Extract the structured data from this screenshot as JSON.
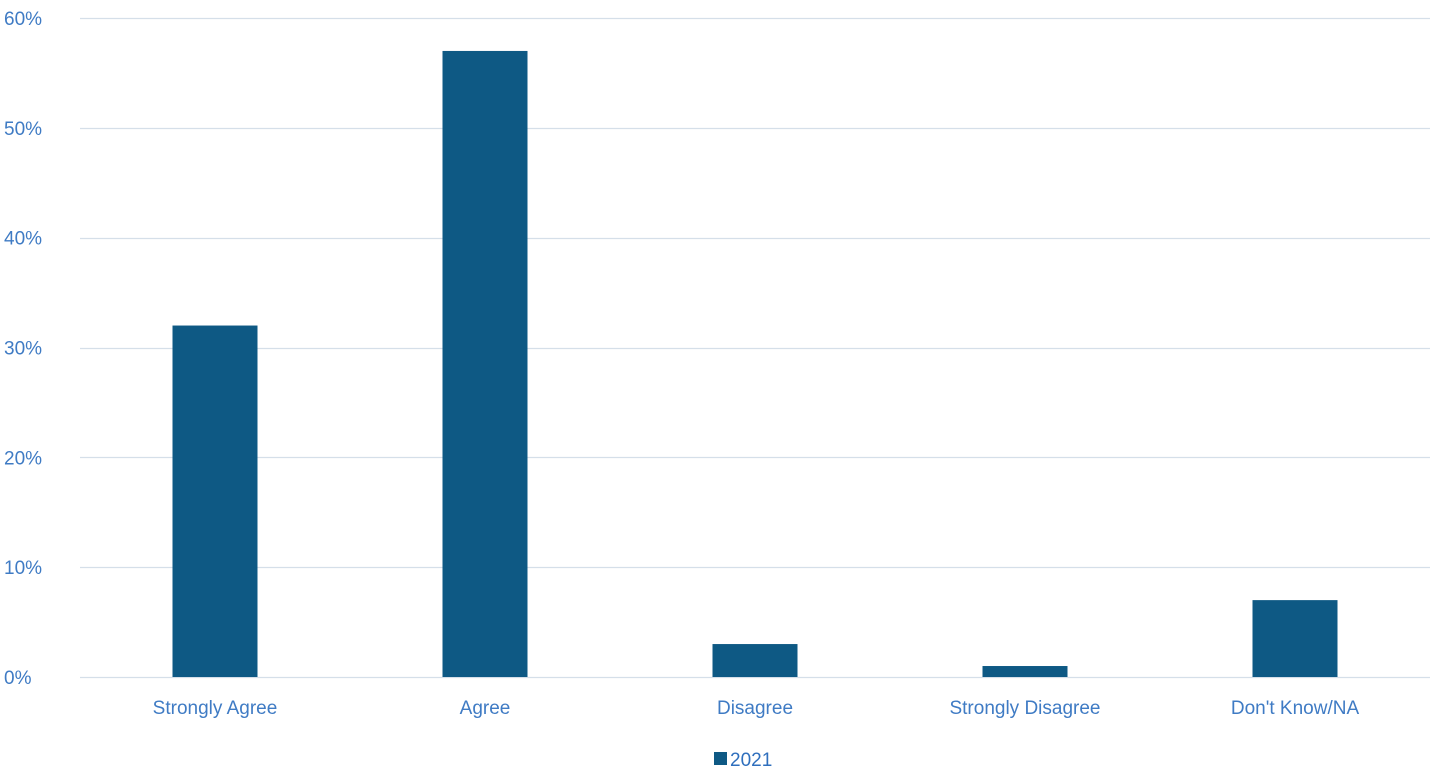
{
  "chart_data": {
    "type": "bar",
    "categories": [
      "Strongly Agree",
      "Agree",
      "Disagree",
      "Strongly Disagree",
      "Don't Know/NA"
    ],
    "series": [
      {
        "name": "2021",
        "values": [
          32,
          57,
          3,
          1,
          7
        ]
      }
    ],
    "unit": "%",
    "ylim": [
      0,
      60
    ],
    "yticks": [
      0,
      10,
      20,
      30,
      40,
      50,
      60
    ],
    "ytick_labels": [
      "0%",
      "10%",
      "20%",
      "30%",
      "40%",
      "50%",
      "60%"
    ],
    "grid": true,
    "legend": {
      "position": "bottom",
      "entries": [
        "2021"
      ]
    },
    "colors": {
      "bar": "#0e5984",
      "grid": "#d5dfe9",
      "axis_text": "#3f7bc4",
      "legend_text": "#2f6fbd"
    }
  }
}
